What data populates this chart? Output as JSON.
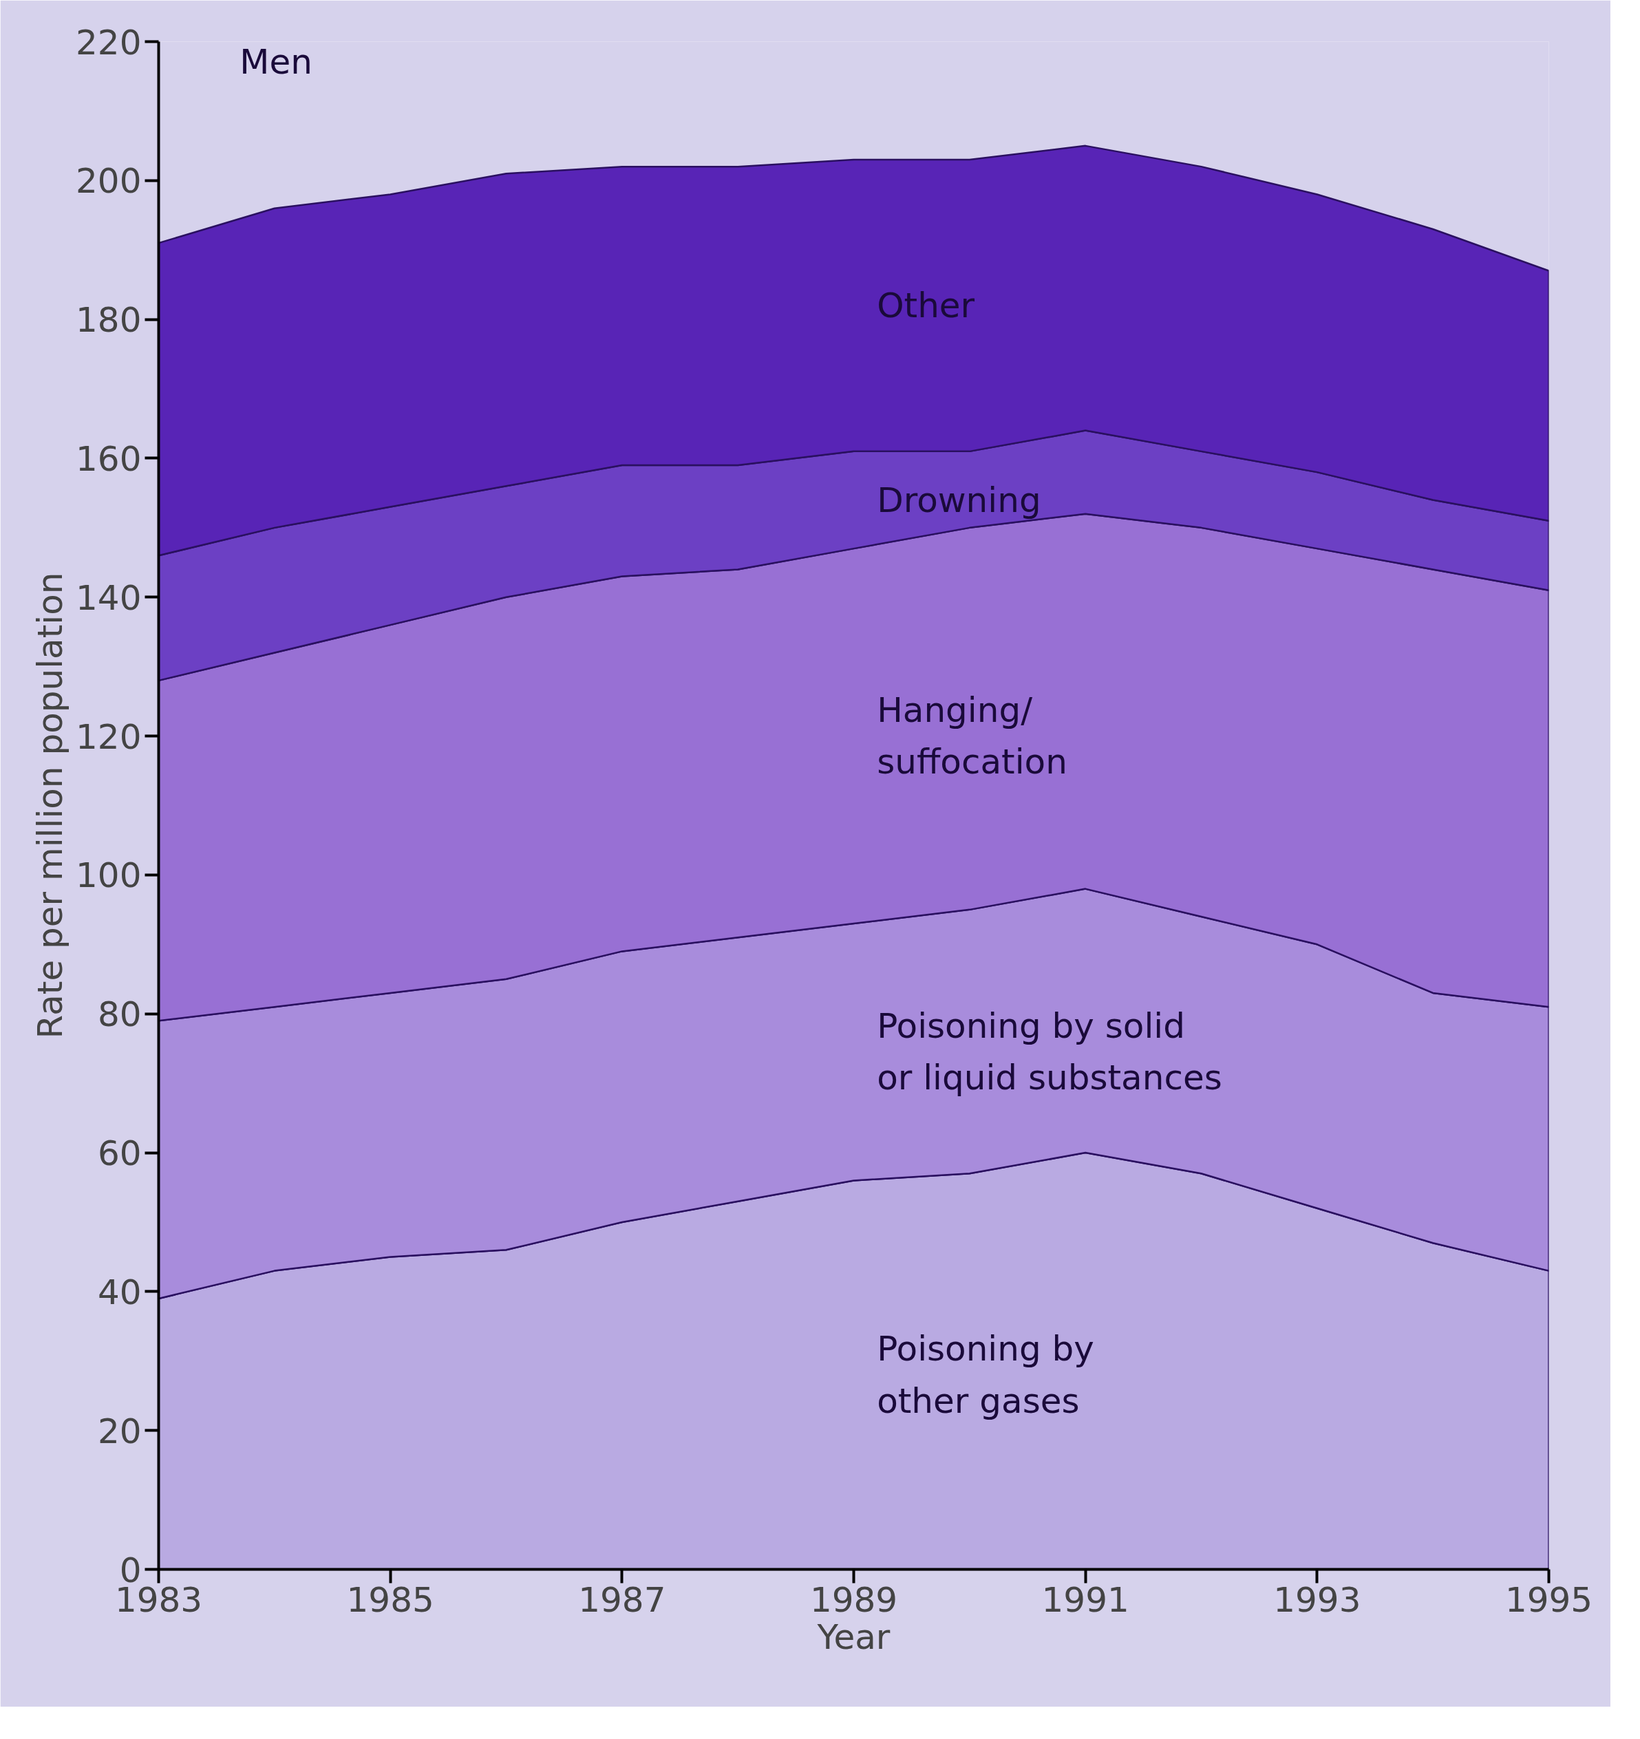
{
  "chart_data": {
    "type": "area",
    "stacked": true,
    "title": "Men",
    "xlabel": "Year",
    "ylabel": "Rate per million population",
    "x": [
      1983,
      1984,
      1985,
      1986,
      1987,
      1988,
      1989,
      1990,
      1991,
      1992,
      1993,
      1994,
      1995
    ],
    "series": [
      {
        "name": "Poisoning by\nother gases",
        "color": "#b9aae2",
        "values": [
          39,
          43,
          45,
          46,
          50,
          53,
          56,
          57,
          60,
          57,
          52,
          47,
          43
        ]
      },
      {
        "name": "Poisoning by solid\nor liquid substances",
        "color": "#a88cdc",
        "values": [
          40,
          38,
          38,
          39,
          39,
          38,
          37,
          38,
          38,
          37,
          38,
          36,
          38
        ]
      },
      {
        "name": "Hanging/\nsuffocation",
        "color": "#9870d4",
        "values": [
          49,
          51,
          53,
          55,
          54,
          53,
          54,
          55,
          54,
          56,
          57,
          61,
          60
        ]
      },
      {
        "name": "Drowning",
        "color": "#6c40c4",
        "values": [
          18,
          18,
          17,
          16,
          16,
          15,
          14,
          11,
          12,
          11,
          11,
          10,
          10
        ]
      },
      {
        "name": "Other",
        "color": "#5824b6",
        "values": [
          45,
          46,
          45,
          45,
          43,
          43,
          42,
          42,
          41,
          41,
          40,
          39,
          36
        ]
      }
    ],
    "xlim": [
      1983,
      1995
    ],
    "ylim": [
      0,
      220
    ],
    "xticks": [
      1983,
      1985,
      1987,
      1989,
      1991,
      1993,
      1995
    ],
    "yticks": [
      0,
      20,
      40,
      60,
      80,
      100,
      120,
      140,
      160,
      180,
      200,
      220
    ],
    "grid": false
  }
}
